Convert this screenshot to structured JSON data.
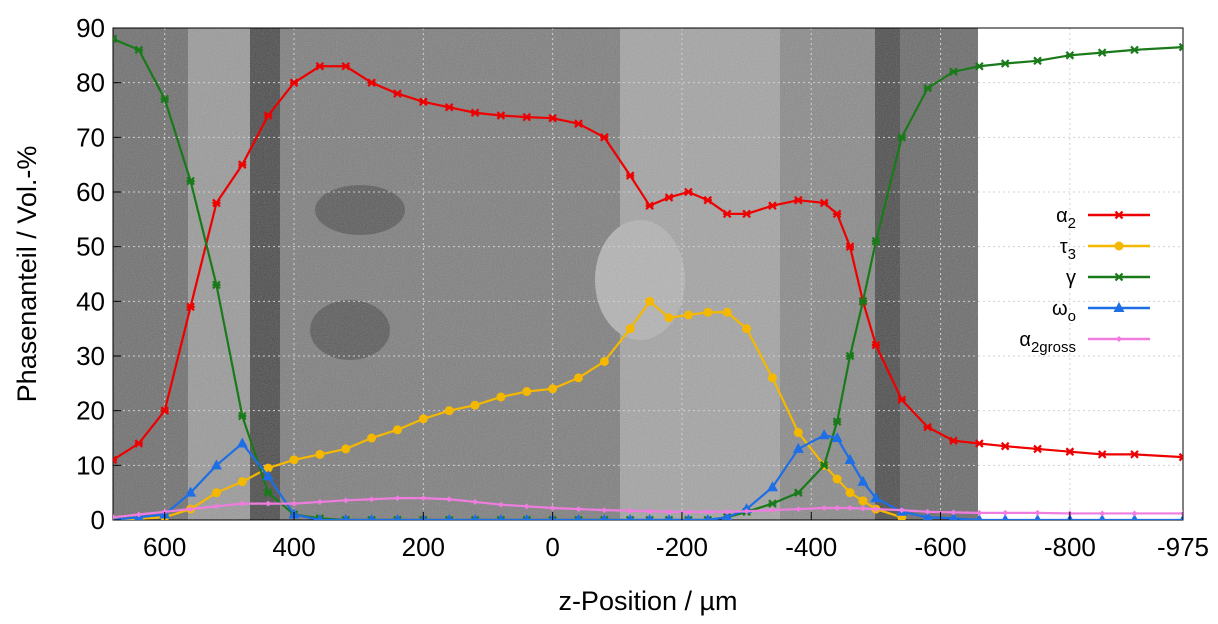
{
  "chart_data": {
    "type": "line",
    "xlabel": "z-Position / µm",
    "ylabel": "Phasenanteil / Vol.-%",
    "x": [
      680,
      640,
      600,
      560,
      520,
      480,
      440,
      400,
      360,
      320,
      280,
      240,
      200,
      160,
      120,
      80,
      40,
      0,
      -40,
      -80,
      -120,
      -150,
      -180,
      -210,
      -240,
      -270,
      -300,
      -340,
      -380,
      -420,
      -440,
      -460,
      -480,
      -500,
      -540,
      -580,
      -620,
      -660,
      -700,
      -750,
      -800,
      -850,
      -900,
      -975
    ],
    "xlim": [
      680,
      -975
    ],
    "xticks": [
      600,
      400,
      200,
      0,
      -200,
      -400,
      -600,
      -800,
      -975
    ],
    "ylim": [
      0,
      90
    ],
    "yticks": [
      0,
      10,
      20,
      30,
      40,
      50,
      60,
      70,
      80,
      90
    ],
    "grid": true,
    "legend": "right",
    "series": [
      {
        "name": "α",
        "subscript": "2",
        "color": "#ee0000",
        "marker": "cross",
        "values": [
          11,
          14,
          20,
          39,
          58,
          65,
          74,
          80,
          83,
          83,
          80,
          78,
          76.5,
          75.5,
          74.5,
          74,
          73.7,
          73.5,
          72.5,
          70,
          63,
          57.5,
          59,
          60,
          58.5,
          56,
          56,
          57.5,
          58.5,
          58,
          56,
          50,
          40,
          32,
          22,
          17,
          14.5,
          14,
          13.5,
          13,
          12.5,
          12,
          12,
          11.5
        ]
      },
      {
        "name": "τ",
        "subscript": "3",
        "color": "#f5b800",
        "marker": "circle",
        "values": [
          0,
          0.2,
          0.5,
          2,
          5,
          7,
          9.5,
          11,
          12,
          13,
          15,
          16.5,
          18.5,
          20,
          21,
          22.5,
          23.5,
          24,
          26,
          29,
          35,
          40,
          37,
          37.5,
          38,
          38,
          35,
          26,
          16,
          10,
          7.5,
          5,
          3.5,
          2,
          0.5,
          null,
          null,
          null,
          null,
          null,
          null,
          null,
          null,
          null
        ]
      },
      {
        "name": "γ",
        "color": "#1a7a1a",
        "marker": "cross",
        "values": [
          88,
          86,
          77,
          62,
          43,
          19,
          5,
          1,
          0.3,
          0,
          0,
          0,
          0,
          0,
          0,
          0,
          0,
          0,
          0,
          0,
          0,
          0,
          0,
          0,
          0,
          0.5,
          1.5,
          3,
          5,
          10,
          18,
          30,
          40,
          51,
          70,
          79,
          82,
          83,
          83.5,
          84,
          85,
          85.5,
          86,
          86.5
        ]
      },
      {
        "name": "ω",
        "subscript": "o",
        "color": "#1e6ee6",
        "marker": "triangle",
        "values": [
          0,
          0.5,
          1,
          5,
          10,
          14,
          8,
          1,
          0,
          0,
          0,
          0,
          0,
          0,
          0,
          0,
          0,
          0,
          0,
          0,
          0,
          0,
          0,
          0,
          0,
          0.5,
          2,
          6,
          13,
          15.5,
          15,
          11,
          7,
          4,
          1.5,
          0.5,
          0.3,
          0,
          0,
          0,
          0,
          0,
          0,
          0
        ]
      },
      {
        "name": "α",
        "subscript": "2gross",
        "color": "#f07ce0",
        "marker": "diamond",
        "values": [
          0.5,
          1,
          1.5,
          2,
          2.5,
          3,
          3,
          3,
          3.3,
          3.6,
          3.8,
          4,
          4,
          3.8,
          3.3,
          2.8,
          2.5,
          2.2,
          2,
          1.8,
          1.7,
          1.6,
          1.5,
          1.5,
          1.5,
          1.5,
          1.6,
          1.8,
          2,
          2.2,
          2.2,
          2.2,
          2.1,
          2,
          1.8,
          1.5,
          1.4,
          1.3,
          1.3,
          1.3,
          1.2,
          1.2,
          1.2,
          1.2
        ]
      }
    ]
  }
}
